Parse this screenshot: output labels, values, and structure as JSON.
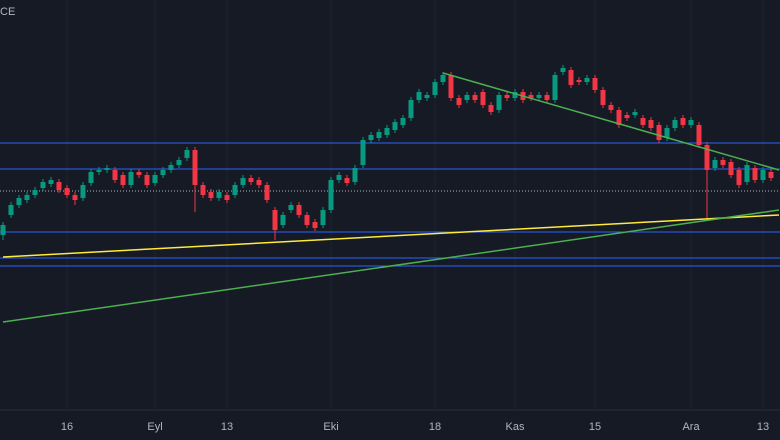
{
  "chart_data": {
    "type": "candlestick",
    "title": "CE",
    "categories": [
      null,
      null,
      null,
      null,
      null,
      null,
      null,
      null,
      "16",
      null,
      null,
      null,
      null,
      null,
      null,
      null,
      null,
      null,
      null,
      "Eyl",
      null,
      null,
      null,
      null,
      null,
      null,
      null,
      null,
      "13",
      null,
      null,
      null,
      null,
      null,
      null,
      null,
      null,
      null,
      null,
      null,
      null,
      "Eki",
      null,
      null,
      null,
      null,
      null,
      null,
      null,
      null,
      null,
      null,
      null,
      null,
      "18",
      null,
      null,
      null,
      null,
      null,
      null,
      null,
      null,
      null,
      "Kas",
      null,
      null,
      null,
      null,
      null,
      null,
      null,
      null,
      null,
      "15",
      null,
      null,
      null,
      null,
      null,
      null,
      null,
      null,
      null,
      null,
      null,
      "Ara",
      null,
      null,
      null,
      null,
      null,
      null,
      null,
      null,
      "13",
      null
    ],
    "open": [
      175,
      195,
      205,
      210,
      215,
      222,
      226,
      228,
      222,
      215,
      212,
      227,
      238,
      240,
      240,
      235,
      225,
      238,
      235,
      227,
      235,
      240,
      245,
      252,
      260,
      225,
      218,
      212,
      215,
      215,
      225,
      232,
      230,
      225,
      200,
      185,
      200,
      205,
      195,
      188,
      185,
      200,
      230,
      232,
      228,
      245,
      270,
      272,
      275,
      280,
      285,
      292,
      310,
      312,
      315,
      328,
      335,
      312,
      310,
      315,
      318,
      305,
      300,
      315,
      312,
      318,
      315,
      312,
      315,
      310,
      338,
      340,
      330,
      328,
      332,
      320,
      305,
      300,
      295,
      295,
      292,
      290,
      285,
      272,
      282,
      292,
      285,
      285,
      265,
      242,
      250,
      248,
      240,
      228,
      242,
      230,
      238
    ],
    "high": [
      188,
      208,
      215,
      218,
      223,
      231,
      233,
      231,
      225,
      218,
      228,
      241,
      243,
      245,
      243,
      238,
      241,
      241,
      238,
      238,
      243,
      248,
      253,
      263,
      263,
      228,
      221,
      221,
      218,
      228,
      235,
      235,
      233,
      228,
      203,
      198,
      208,
      208,
      198,
      191,
      203,
      233,
      238,
      235,
      245,
      273,
      278,
      281,
      285,
      291,
      295,
      313,
      321,
      318,
      331,
      338,
      338,
      315,
      318,
      318,
      321,
      308,
      318,
      318,
      321,
      321,
      318,
      318,
      318,
      338,
      345,
      343,
      333,
      335,
      335,
      323,
      308,
      303,
      298,
      301,
      295,
      293,
      288,
      285,
      293,
      295,
      293,
      288,
      268,
      253,
      253,
      251,
      243,
      248,
      245,
      243,
      241
    ],
    "low": [
      170,
      192,
      202,
      207,
      212,
      219,
      223,
      217,
      212,
      205,
      209,
      224,
      235,
      237,
      227,
      222,
      222,
      232,
      222,
      224,
      232,
      237,
      242,
      249,
      198,
      212,
      209,
      209,
      207,
      212,
      222,
      225,
      222,
      207,
      170,
      182,
      197,
      192,
      182,
      179,
      182,
      197,
      227,
      224,
      225,
      242,
      267,
      269,
      272,
      277,
      282,
      289,
      307,
      309,
      312,
      325,
      309,
      302,
      307,
      307,
      302,
      295,
      297,
      309,
      309,
      307,
      309,
      309,
      307,
      307,
      335,
      322,
      325,
      325,
      317,
      302,
      297,
      282,
      289,
      292,
      282,
      279,
      267,
      269,
      279,
      282,
      282,
      262,
      190,
      239,
      242,
      232,
      222,
      225,
      227,
      227,
      229
    ],
    "close": [
      185,
      205,
      212,
      215,
      220,
      228,
      230,
      220,
      215,
      210,
      225,
      238,
      240,
      242,
      230,
      225,
      238,
      235,
      225,
      235,
      240,
      245,
      250,
      260,
      225,
      215,
      212,
      218,
      210,
      225,
      232,
      228,
      225,
      210,
      180,
      195,
      205,
      195,
      185,
      182,
      200,
      230,
      235,
      227,
      242,
      270,
      275,
      278,
      282,
      288,
      292,
      310,
      318,
      315,
      328,
      335,
      312,
      305,
      315,
      310,
      305,
      298,
      315,
      312,
      318,
      310,
      312,
      315,
      310,
      335,
      342,
      325,
      328,
      332,
      320,
      305,
      300,
      285,
      292,
      298,
      285,
      282,
      270,
      282,
      290,
      285,
      290,
      265,
      240,
      250,
      245,
      235,
      225,
      245,
      230,
      240,
      232
    ],
    "up_color": "#089981",
    "down_color": "#f23645",
    "ylim": [
      0,
      410
    ],
    "levels": [
      {
        "value": 267,
        "color": "#2962ff"
      },
      {
        "value": 241,
        "color": "#2962ff"
      },
      {
        "value": 219,
        "color": "#b2b5be"
      },
      {
        "value": 178,
        "color": "#2962ff"
      },
      {
        "value": 152,
        "color": "#2962ff"
      },
      {
        "value": 144,
        "color": "#2962ff"
      }
    ],
    "trendlines": [
      {
        "color": "#4caf50",
        "x": [
          55,
          97
        ],
        "y": [
          337,
          240
        ]
      },
      {
        "color": "#ffeb3b",
        "x": [
          0,
          97
        ],
        "y": [
          153,
          195
        ]
      },
      {
        "color": "#4caf50",
        "x": [
          0,
          97
        ],
        "y": [
          88,
          200
        ]
      }
    ]
  }
}
